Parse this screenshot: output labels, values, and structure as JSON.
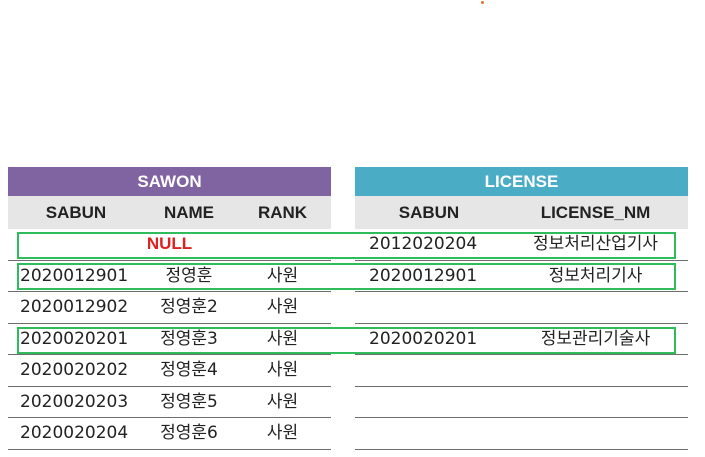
{
  "sawon": {
    "title": "SAWON",
    "headers": [
      "SABUN",
      "NAME",
      "RANK"
    ],
    "null_label": "NULL",
    "rows": [
      [
        "2020012901",
        "정영훈",
        "사원"
      ],
      [
        "2020012902",
        "정영훈2",
        "사원"
      ],
      [
        "2020020201",
        "정영훈3",
        "사원"
      ],
      [
        "2020020202",
        "정영훈4",
        "사원"
      ],
      [
        "2020020203",
        "정영훈5",
        "사원"
      ],
      [
        "2020020204",
        "정영훈6",
        "사원"
      ]
    ]
  },
  "license": {
    "title": "LICENSE",
    "headers": [
      "SABUN",
      "LICENSE_NM"
    ],
    "rows": [
      [
        "2012020204",
        "정보처리산업기사"
      ],
      [
        "2020012901",
        "정보처리기사"
      ],
      [
        "",
        ""
      ],
      [
        "2020020201",
        "정보관리기술사"
      ],
      [
        "",
        ""
      ],
      [
        "",
        ""
      ],
      [
        "",
        ""
      ]
    ]
  },
  "colors": {
    "sawon_header": "#8064a2",
    "license_header": "#4bacc6",
    "highlight": "#2ebd5a",
    "null_text": "#e02020"
  }
}
